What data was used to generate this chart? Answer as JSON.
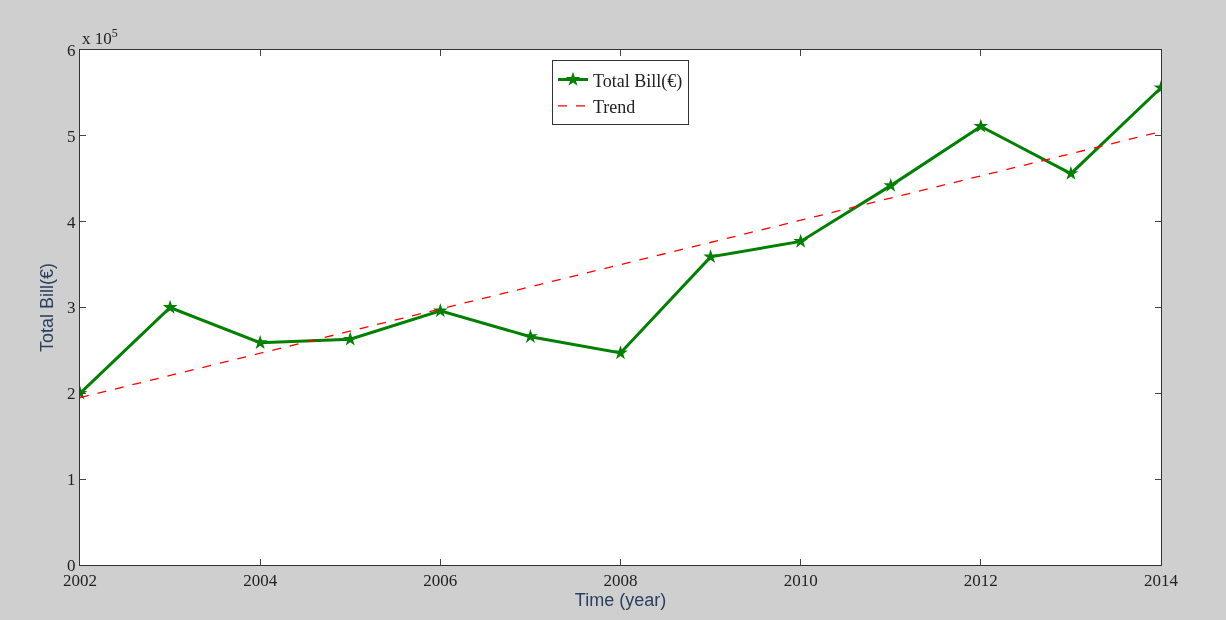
{
  "chart_data": {
    "type": "line",
    "xlabel": "Time (year)",
    "ylabel": "Total Bill(€)",
    "annotations": [
      "x 10$^{5}$"
    ],
    "x": [
      2002,
      2003,
      2004,
      2005,
      2006,
      2007,
      2008,
      2009,
      2010,
      2011,
      2012,
      2013,
      2014
    ],
    "series": [
      {
        "name": "Total Bill(€)",
        "color": "#008000",
        "marker": "star",
        "line_style": "solid",
        "values": [
          2.0,
          3.0,
          2.59,
          2.63,
          2.96,
          2.66,
          2.47,
          3.59,
          3.77,
          4.42,
          5.11,
          4.56,
          5.56
        ]
      },
      {
        "name": "Trend",
        "color": "#ff0000",
        "marker": "none",
        "line_style": "dashed",
        "x": [
          2002,
          2014
        ],
        "values": [
          1.95,
          5.05
        ]
      }
    ],
    "xlim": [
      2002,
      2014
    ],
    "xticks": [
      2002,
      2004,
      2006,
      2008,
      2010,
      2012,
      2014
    ],
    "ylim": [
      0,
      6
    ],
    "yticks": [
      0,
      1,
      2,
      3,
      4,
      5,
      6
    ],
    "legend": "top"
  }
}
